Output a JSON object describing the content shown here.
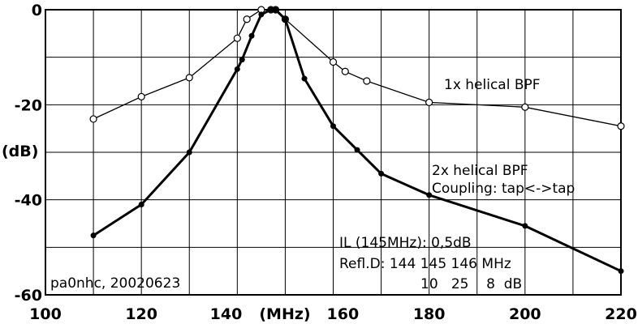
{
  "chart_data": {
    "type": "line",
    "title": "",
    "xlabel": "(MHz)",
    "ylabel": "(dB)",
    "xlim": [
      100,
      220
    ],
    "ylim": [
      -60,
      0
    ],
    "grid": true,
    "x_ticks": [
      "100",
      "120",
      "140",
      "160",
      "180",
      "200",
      "220"
    ],
    "y_ticks": [
      "0",
      "-20",
      "-40",
      "-60"
    ],
    "series": [
      {
        "name": "1x helical BPF",
        "line": "thin",
        "marker": "open-circle",
        "x": [
          110,
          120,
          130,
          140,
          142,
          145,
          147,
          148,
          150,
          160,
          162.5,
          167,
          180,
          200,
          220
        ],
        "y": [
          -23,
          -18.3,
          -14.3,
          -6,
          -2,
          0,
          0,
          0,
          -2,
          -11,
          -13,
          -15,
          -19.5,
          -20.5,
          -24.5
        ]
      },
      {
        "name": "2x helical BPF",
        "line": "thick",
        "marker": "filled-dot",
        "x": [
          110,
          120,
          130,
          140,
          141,
          143,
          145,
          147,
          148,
          150,
          154,
          160,
          165,
          170,
          180,
          200,
          220
        ],
        "y": [
          -47.5,
          -41,
          -30,
          -12.5,
          -10.5,
          -5.5,
          -1,
          0,
          0,
          -2,
          -14.5,
          -24.5,
          -29.5,
          -34.5,
          -39,
          -45.5,
          -55
        ]
      }
    ],
    "annotations": {
      "label_1x": "1x helical BPF",
      "label_2x": "2x helical BPF",
      "coupling": "Coupling: tap<->tap",
      "il": "IL (145MHz): 0,5dB",
      "refl_header": "Refl.D: 144  145  146 MHz",
      "refl_values": "10   25    8  dB",
      "credit": "pa0nhc, 20020623"
    }
  }
}
